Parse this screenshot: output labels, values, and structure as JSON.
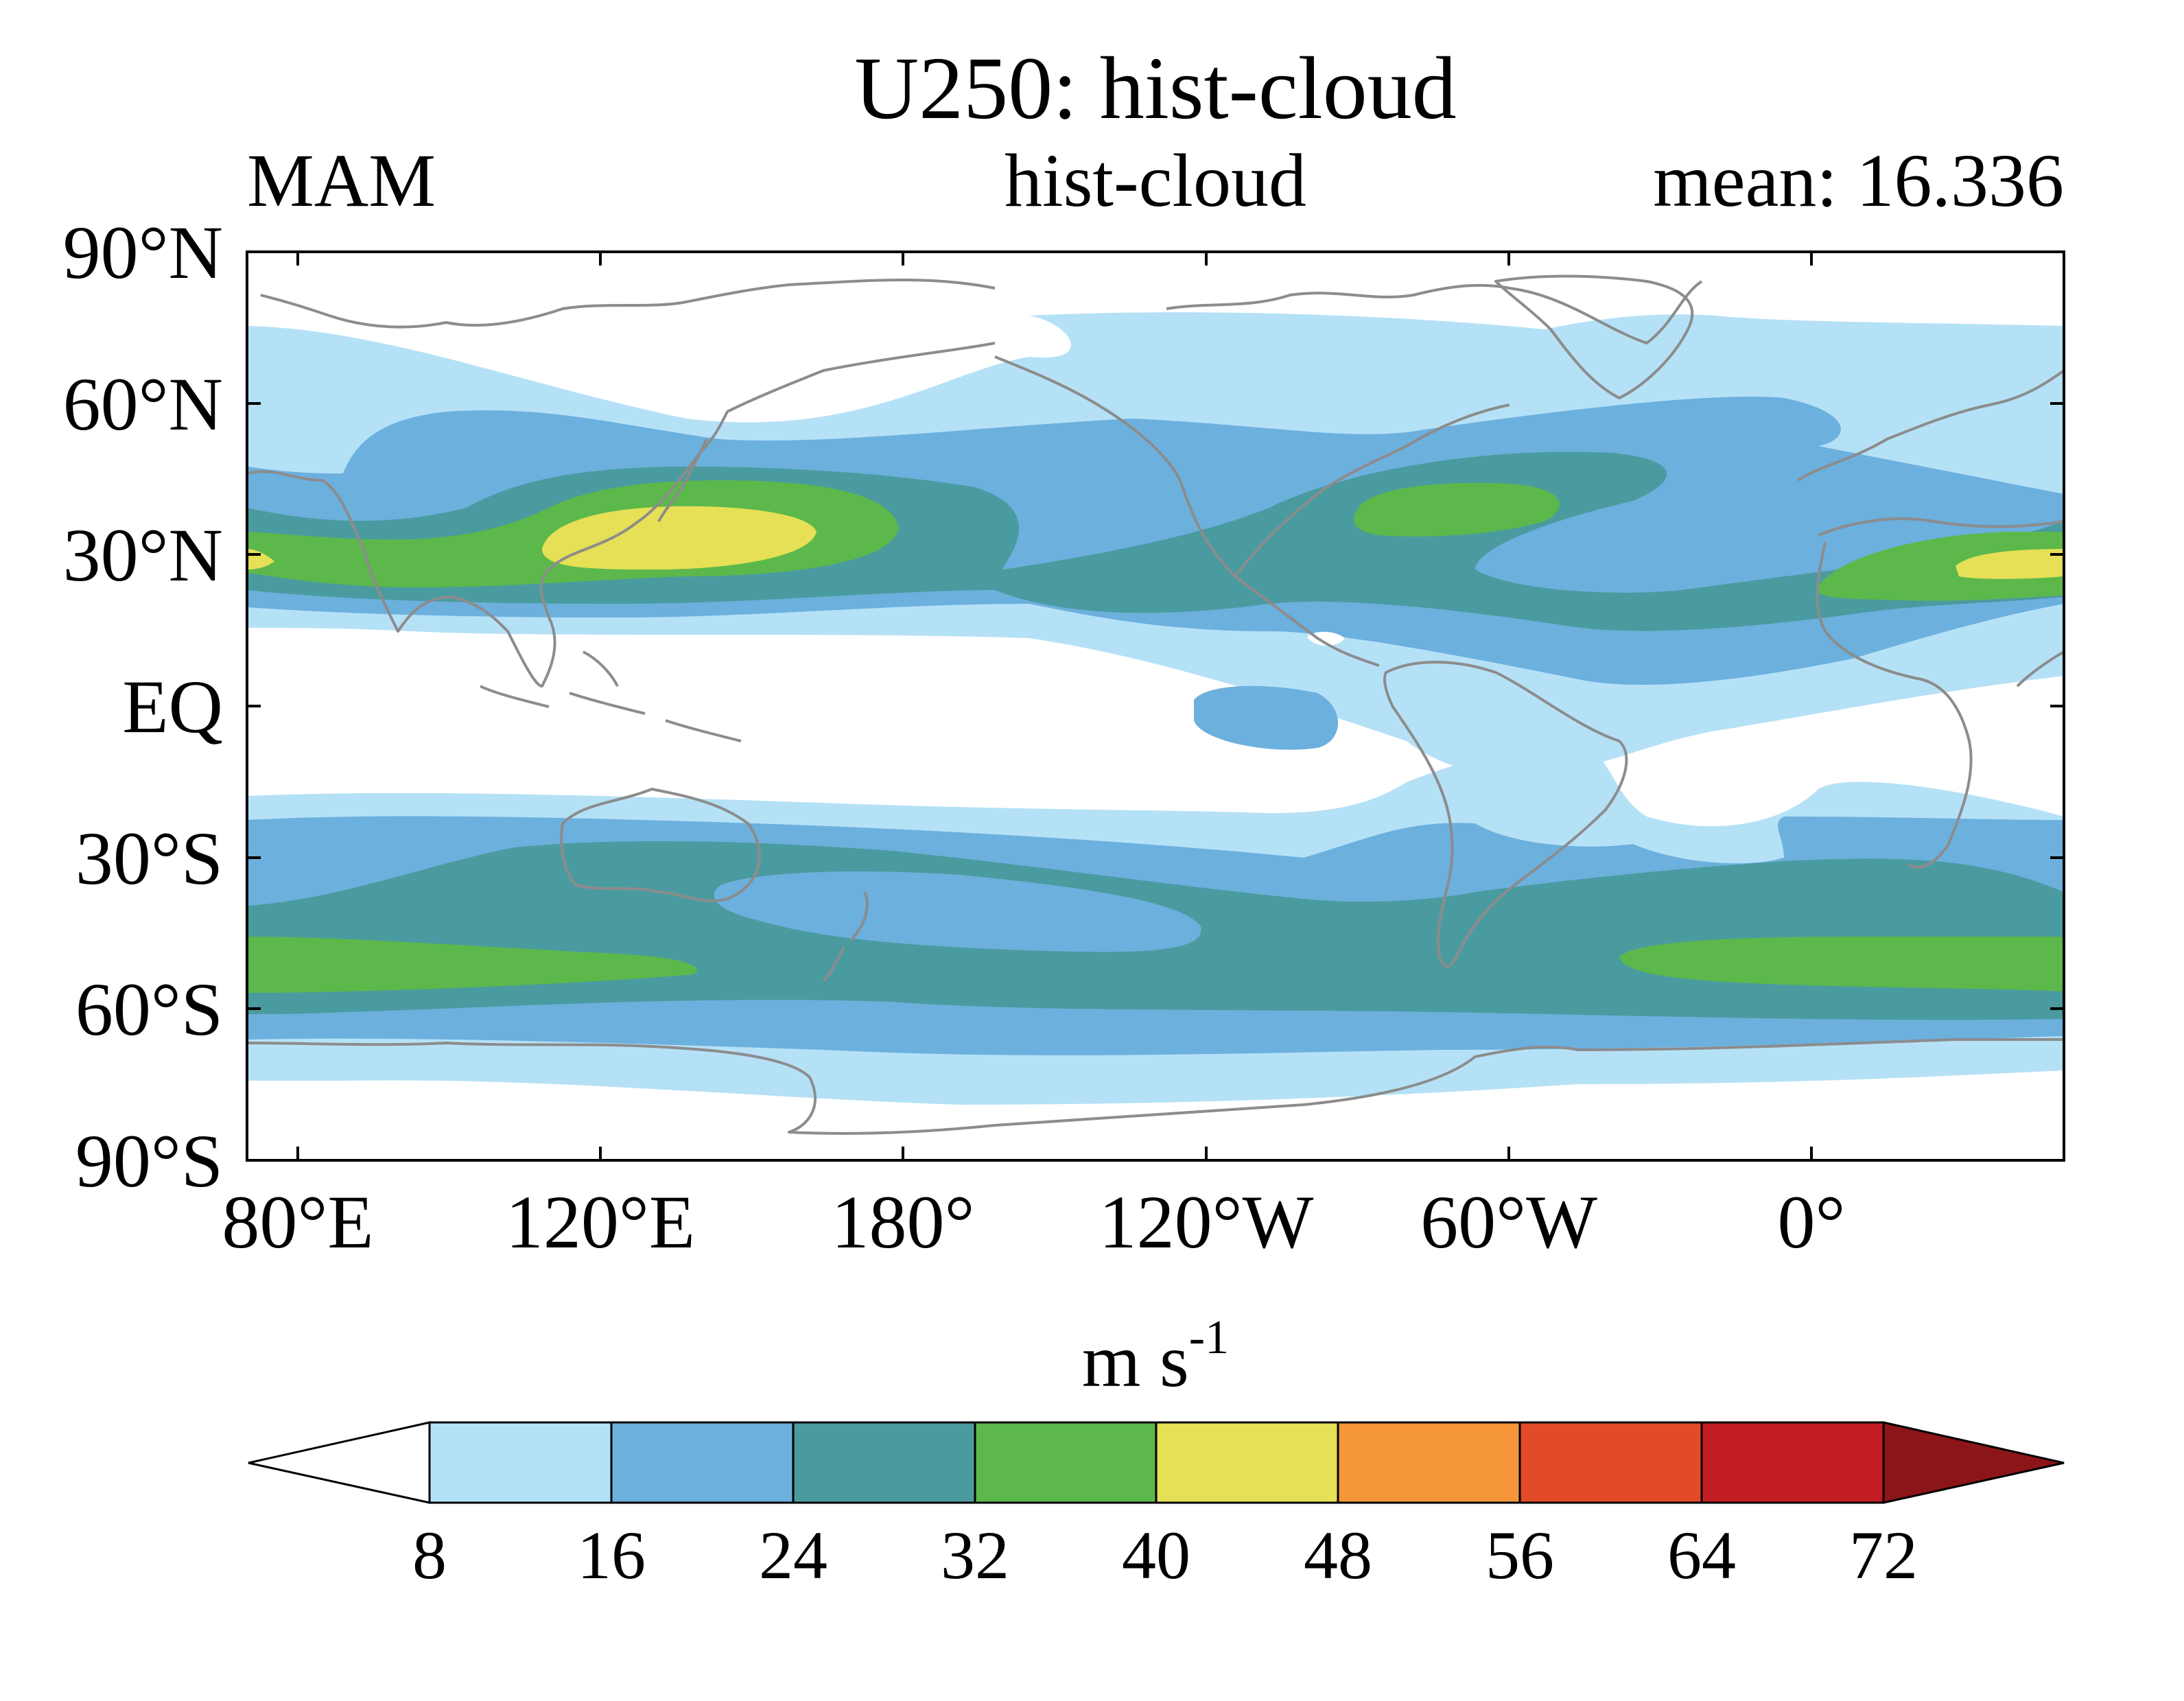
{
  "title": "U250: hist-cloud",
  "header": {
    "left": "MAM",
    "center": "hist-cloud",
    "right": "mean: 16.336"
  },
  "map": {
    "type": "filled-contour",
    "projection": "equirectangular",
    "central_longitude": "150°W",
    "y_ticks": [
      "90°N",
      "60°N",
      "30°N",
      "EQ",
      "30°S",
      "60°S",
      "90°S"
    ],
    "x_ticks": [
      "80°E",
      "120°E",
      "180°",
      "120°W",
      "60°W",
      "0°"
    ],
    "coastline_color": "#8c8c8c"
  },
  "colorbar": {
    "unit_base": "m s",
    "unit_exp": "-1",
    "levels": [
      "8",
      "16",
      "24",
      "32",
      "40",
      "48",
      "56",
      "64",
      "72"
    ],
    "colors": [
      "#ffffff",
      "#b5e1f7",
      "#6cb0de",
      "#4a9b9f",
      "#5cb84b",
      "#e5e055",
      "#f5963a",
      "#e24b27",
      "#c21d25",
      "#8c1519"
    ],
    "extend": "both"
  }
}
